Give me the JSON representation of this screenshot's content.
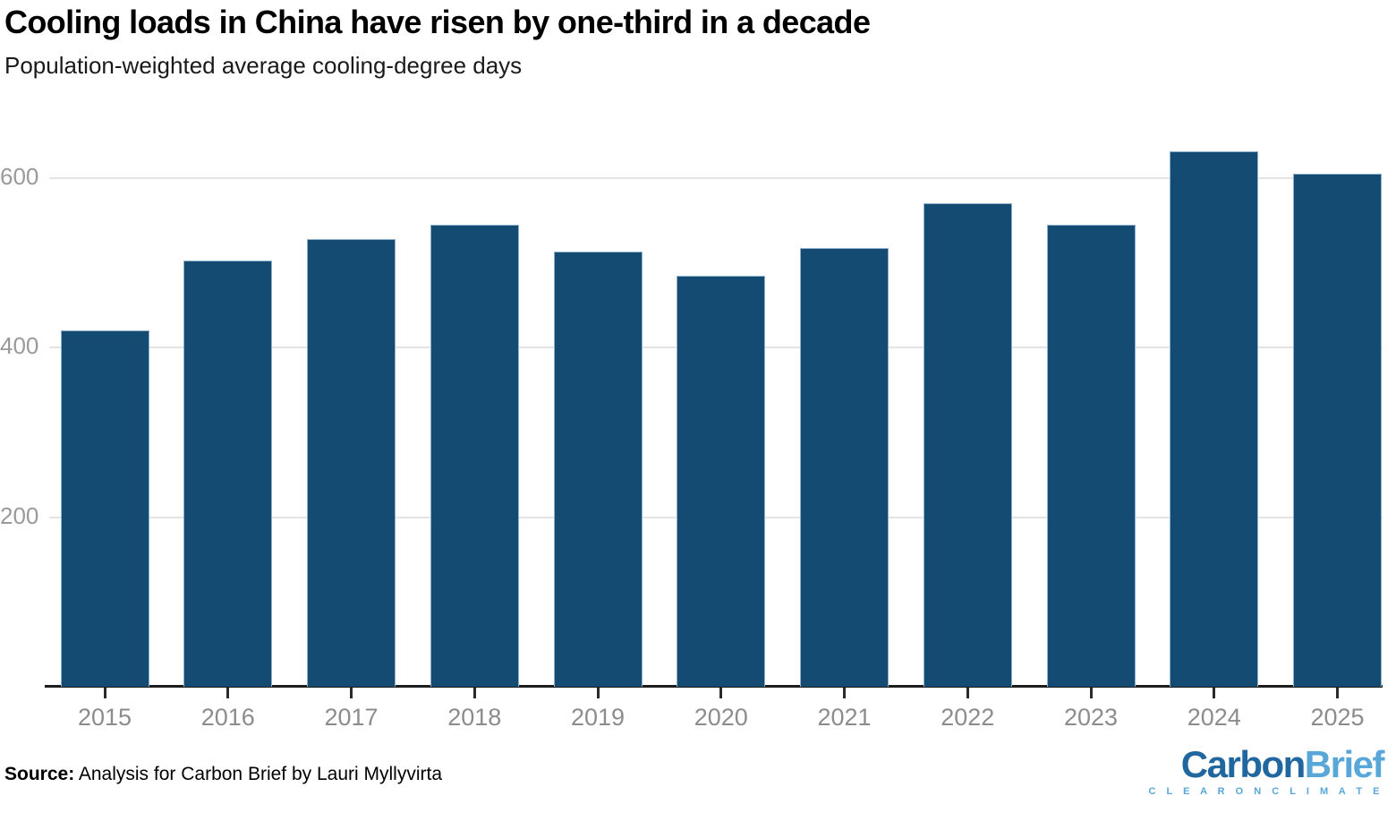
{
  "header": {
    "title": "Cooling loads in China have risen by one-third in a decade",
    "subtitle": "Population-weighted average cooling-degree days"
  },
  "chart_data": {
    "type": "bar",
    "title": "Cooling loads in China have risen by one-third in a decade",
    "subtitle": "Population-weighted average cooling-degree days",
    "categories": [
      "2015",
      "2016",
      "2017",
      "2018",
      "2019",
      "2020",
      "2021",
      "2022",
      "2023",
      "2024",
      "2025"
    ],
    "values": [
      420,
      503,
      528,
      545,
      513,
      485,
      517,
      570,
      545,
      631,
      605
    ],
    "xlabel": "",
    "ylabel": "",
    "yticks": [
      200,
      400,
      600
    ],
    "ylim": [
      0,
      662
    ],
    "grid": "horizontal",
    "legend": "none",
    "bar_color": "#134b73",
    "bar_edge_color": "#8fb0c8",
    "grid_color": "#e4e4e4",
    "axis_color": "#1d1d1d",
    "tick_label_color": "#8c8c8c"
  },
  "footer": {
    "source_label": "Source:",
    "source_text": " Analysis for Carbon Brief by Lauri Myllyvirta",
    "logo": {
      "part1": "Carbon",
      "part2": "Brief",
      "tagline": "C L E A R   O N   C L I M A T E",
      "color_part1": "#21679f",
      "color_part2": "#58a7d8"
    }
  }
}
